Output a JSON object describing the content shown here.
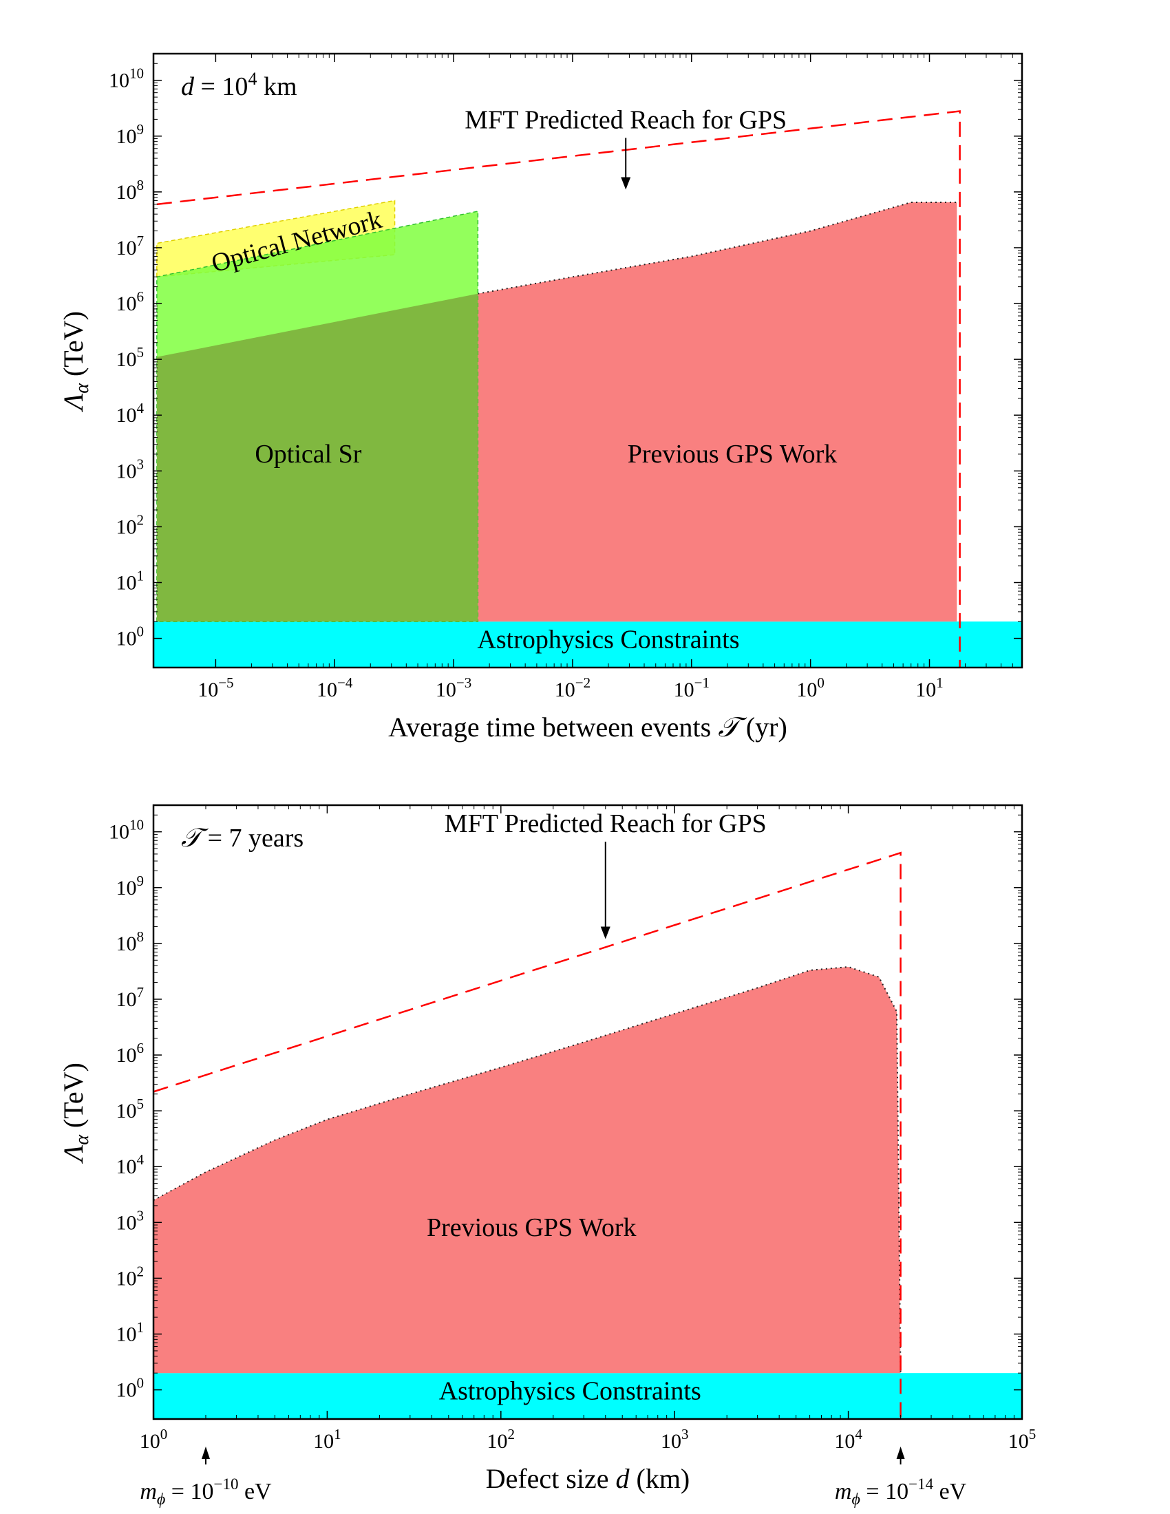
{
  "chart_data": [
    {
      "type": "area",
      "id": "top",
      "xscale": "log",
      "yscale": "log",
      "xlim": [
        3e-06,
        60
      ],
      "ylim": [
        0.3,
        30000000000.0
      ],
      "xlabel_main": "Average time between events ",
      "xlabel_symbol": "𝒯",
      "xlabel_unit": " (yr)",
      "ylabel_symbol": "Λ",
      "ylabel_sub": "α",
      "ylabel_unit": " (TeV)",
      "corner_label": {
        "var": "d",
        "eq": " = 10",
        "exp": "4",
        "unit": " km"
      },
      "annotation": "MFT Predicted Reach for GPS",
      "annotation_arrow": {
        "x_from": 0.028,
        "y_from": 700000000.0,
        "x_to": 0.028,
        "y_to": 110000000.0
      },
      "x_ticks": [
        {
          "x": 1e-05,
          "base": "10",
          "exp": "−5"
        },
        {
          "x": 0.0001,
          "base": "10",
          "exp": "−4"
        },
        {
          "x": 0.001,
          "base": "10",
          "exp": "−3"
        },
        {
          "x": 0.01,
          "base": "10",
          "exp": "−2"
        },
        {
          "x": 0.1,
          "base": "10",
          "exp": "−1"
        },
        {
          "x": 1,
          "base": "10",
          "exp": "0"
        },
        {
          "x": 10,
          "base": "10",
          "exp": "1"
        }
      ],
      "y_ticks": [
        {
          "y": 1,
          "base": "10",
          "exp": "0"
        },
        {
          "y": 10,
          "base": "10",
          "exp": "1"
        },
        {
          "y": 100,
          "base": "10",
          "exp": "2"
        },
        {
          "y": 1000,
          "base": "10",
          "exp": "3"
        },
        {
          "y": 10000,
          "base": "10",
          "exp": "4"
        },
        {
          "y": 100000,
          "base": "10",
          "exp": "5"
        },
        {
          "y": 1000000,
          "base": "10",
          "exp": "6"
        },
        {
          "y": 10000000,
          "base": "10",
          "exp": "7"
        },
        {
          "y": 100000000,
          "base": "10",
          "exp": "8"
        },
        {
          "y": 1000000000,
          "base": "10",
          "exp": "9"
        },
        {
          "y": 10000000000,
          "base": "10",
          "exp": "10"
        }
      ],
      "regions": [
        {
          "name": "Astrophysics Constraints",
          "color": "#00ffff",
          "kind": "band",
          "y": [
            0.3,
            2
          ],
          "label_at": [
            0.02,
            0.95
          ]
        },
        {
          "name": "Previous GPS Work",
          "color": "#f98080",
          "kind": "area",
          "x": [
            0.0016,
            0.01,
            0.1,
            1,
            7,
            17
          ],
          "y": [
            1500000.0,
            3000000.0,
            7000000.0,
            20000000.0,
            65000000.0,
            65000000.0
          ],
          "label_at": [
            0.22,
            2000
          ]
        },
        {
          "name": "Optical Network",
          "color": "#ffff70",
          "kind": "area",
          "x": [
            3.2e-06,
            0.00032
          ],
          "y": [
            12000000.0,
            70000000.0
          ],
          "lower": [
            3000000.0,
            7500000.0
          ],
          "label_rotate": -15,
          "label_at": [
            5e-05,
            13000000.0
          ]
        },
        {
          "name": "Optical Sr",
          "color": "#80ff40",
          "kind": "area",
          "x": [
            3.2e-06,
            0.0016
          ],
          "y": [
            3000000.0,
            45000000.0
          ],
          "label_at": [
            6e-05,
            2000
          ]
        }
      ],
      "mft_line": {
        "x": [
          3.2e-06,
          18,
          18
        ],
        "y": [
          60000000.0,
          2800000000.0,
          0.3
        ],
        "color": "#ff0000"
      }
    },
    {
      "type": "area",
      "id": "bottom",
      "xscale": "log",
      "yscale": "log",
      "xlim": [
        1,
        100000
      ],
      "ylim": [
        0.3,
        30000000000.0
      ],
      "xlabel_main": "Defect size ",
      "xlabel_symbol": "d",
      "xlabel_unit": " (km)",
      "ylabel_symbol": "Λ",
      "ylabel_sub": "α",
      "ylabel_unit": " (TeV)",
      "corner_label": {
        "var": "𝒯",
        "eq": " = 7 years",
        "exp": "",
        "unit": ""
      },
      "annotation": "MFT Predicted Reach for GPS",
      "annotation_arrow": {
        "x_from": 400,
        "y_from": 5000000000.0,
        "x_to": 400,
        "y_to": 120000000.0
      },
      "x_ticks": [
        {
          "x": 1,
          "base": "10",
          "exp": "0"
        },
        {
          "x": 10,
          "base": "10",
          "exp": "1"
        },
        {
          "x": 100,
          "base": "10",
          "exp": "2"
        },
        {
          "x": 1000,
          "base": "10",
          "exp": "3"
        },
        {
          "x": 10000,
          "base": "10",
          "exp": "4"
        },
        {
          "x": 100000,
          "base": "10",
          "exp": "5"
        }
      ],
      "y_ticks": [
        {
          "y": 1,
          "base": "10",
          "exp": "0"
        },
        {
          "y": 10,
          "base": "10",
          "exp": "1"
        },
        {
          "y": 100,
          "base": "10",
          "exp": "2"
        },
        {
          "y": 1000,
          "base": "10",
          "exp": "3"
        },
        {
          "y": 10000,
          "base": "10",
          "exp": "4"
        },
        {
          "y": 100000,
          "base": "10",
          "exp": "5"
        },
        {
          "y": 1000000,
          "base": "10",
          "exp": "6"
        },
        {
          "y": 10000000,
          "base": "10",
          "exp": "7"
        },
        {
          "y": 100000000,
          "base": "10",
          "exp": "8"
        },
        {
          "y": 1000000000,
          "base": "10",
          "exp": "9"
        },
        {
          "y": 10000000000,
          "base": "10",
          "exp": "10"
        }
      ],
      "regions": [
        {
          "name": "Astrophysics Constraints",
          "color": "#00ffff",
          "kind": "band",
          "y": [
            0.3,
            2
          ],
          "label_at": [
            250,
            0.95
          ]
        },
        {
          "name": "Previous GPS Work",
          "color": "#f98080",
          "kind": "area",
          "x": [
            1,
            2,
            5,
            10,
            30,
            100,
            300,
            1000,
            3000,
            6000,
            10000,
            15000,
            19000,
            20000
          ],
          "y": [
            2500,
            8000,
            30000,
            70000,
            200000,
            600000,
            1700000.0,
            5500000.0,
            16000000.0,
            33000000.0,
            38000000.0,
            25000000.0,
            6000000.0,
            2
          ],
          "label_at": [
            150,
            800
          ]
        }
      ],
      "mft_line": {
        "x": [
          1,
          20000,
          20000
        ],
        "y": [
          220000.0,
          4200000000.0,
          0.3
        ],
        "color": "#ff0000"
      },
      "mass_markers": [
        {
          "x": 2,
          "label_base": "= 10",
          "label_exp": "−10",
          "label_unit": " eV",
          "symbol": "m",
          "sub": "ϕ"
        },
        {
          "x": 20000,
          "label_base": "= 10",
          "label_exp": "−14",
          "label_unit": " eV",
          "symbol": "m",
          "sub": "ϕ"
        }
      ]
    }
  ]
}
